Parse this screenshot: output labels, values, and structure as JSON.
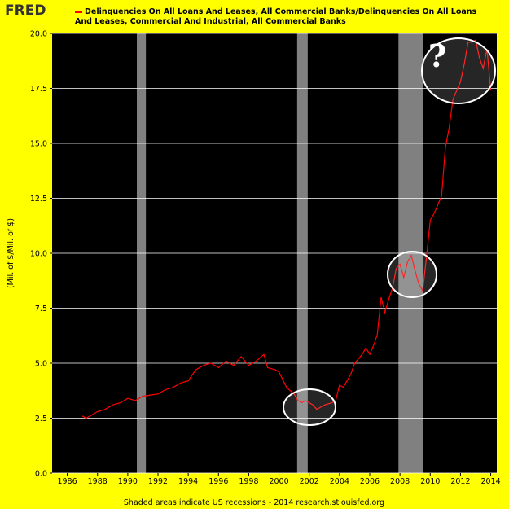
{
  "chart_data": {
    "type": "line",
    "ylabel": "(Mil. of $/Mil. of $)",
    "note": "Shaded areas indicate US recessions - 2014 research.stlouisfed.org",
    "annotation": "?",
    "xlim": [
      1985,
      2014.4
    ],
    "xticks": [
      1986,
      1988,
      1990,
      1992,
      1994,
      1996,
      1998,
      2000,
      2002,
      2004,
      2006,
      2008,
      2010,
      2012,
      2014
    ],
    "ylim": [
      0,
      20
    ],
    "yticks": [
      {
        "value": 0,
        "label": "0.0"
      },
      2.5,
      {
        "value": 5,
        "label": "5.0"
      },
      7.5,
      {
        "value": 10,
        "label": "10.0"
      },
      12.5,
      {
        "value": 15,
        "label": "15.0"
      },
      17.5,
      {
        "value": 20,
        "label": "20.0"
      }
    ],
    "grid": true,
    "recessions": [
      [
        1990.6,
        1991.2
      ],
      [
        2001.2,
        2001.9
      ],
      [
        2007.9,
        2009.5
      ]
    ],
    "recession_color": "#808080",
    "x": [
      1987.0,
      1987.25,
      1987.5,
      1988,
      1988.5,
      1989,
      1989.5,
      1990,
      1990.5,
      1991,
      1991.5,
      1992,
      1992.5,
      1993,
      1993.5,
      1994,
      1994.5,
      1995,
      1995.5,
      1996,
      1996.5,
      1997,
      1997.5,
      1998,
      1998.5,
      1999,
      1999.25,
      1999.75,
      2000,
      2000.5,
      2001,
      2001.25,
      2001.5,
      2001.75,
      2002,
      2002.25,
      2002.5,
      2002.75,
      2003,
      2003.5,
      2003.75,
      2004,
      2004.25,
      2004.5,
      2004.75,
      2005,
      2005.25,
      2005.5,
      2005.75,
      2006,
      2006.25,
      2006.5,
      2006.75,
      2007,
      2007.25,
      2007.5,
      2007.75,
      2008,
      2008.25,
      2008.5,
      2008.75,
      2009,
      2009.25,
      2009.5,
      2009.75,
      2010,
      2010.25,
      2010.5,
      2010.75,
      2011,
      2011.25,
      2011.5,
      2011.75,
      2012,
      2012.25,
      2012.5,
      2012.75,
      2013,
      2013.25,
      2013.5,
      2013.75,
      2014
    ],
    "series": [
      {
        "name": "Delinquencies On All Loans And Leases, All Commercial Banks/Delinquencies On All Loans And Leases, Commercial And Industrial, All Commercial Banks",
        "color": "#ff0000",
        "values": [
          2.6,
          2.5,
          2.6,
          2.8,
          2.9,
          3.1,
          3.2,
          3.4,
          3.3,
          3.5,
          3.55,
          3.6,
          3.8,
          3.9,
          4.1,
          4.2,
          4.7,
          4.9,
          5.0,
          4.8,
          5.1,
          4.9,
          5.3,
          4.9,
          5.1,
          5.4,
          4.8,
          4.7,
          4.6,
          3.9,
          3.6,
          3.3,
          3.2,
          3.3,
          3.2,
          3.1,
          2.9,
          3.0,
          3.1,
          3.2,
          3.3,
          4.0,
          3.9,
          4.2,
          4.5,
          5.0,
          5.2,
          5.4,
          5.7,
          5.4,
          5.8,
          6.3,
          8.0,
          7.3,
          7.9,
          8.4,
          9.3,
          9.5,
          8.9,
          9.6,
          9.9,
          9.2,
          8.6,
          8.3,
          9.8,
          11.5,
          11.8,
          12.2,
          12.6,
          14.8,
          15.7,
          17.0,
          17.4,
          17.8,
          18.6,
          19.6,
          19.6,
          19.7,
          18.9,
          18.4,
          19.3,
          17.4
        ]
      }
    ]
  }
}
